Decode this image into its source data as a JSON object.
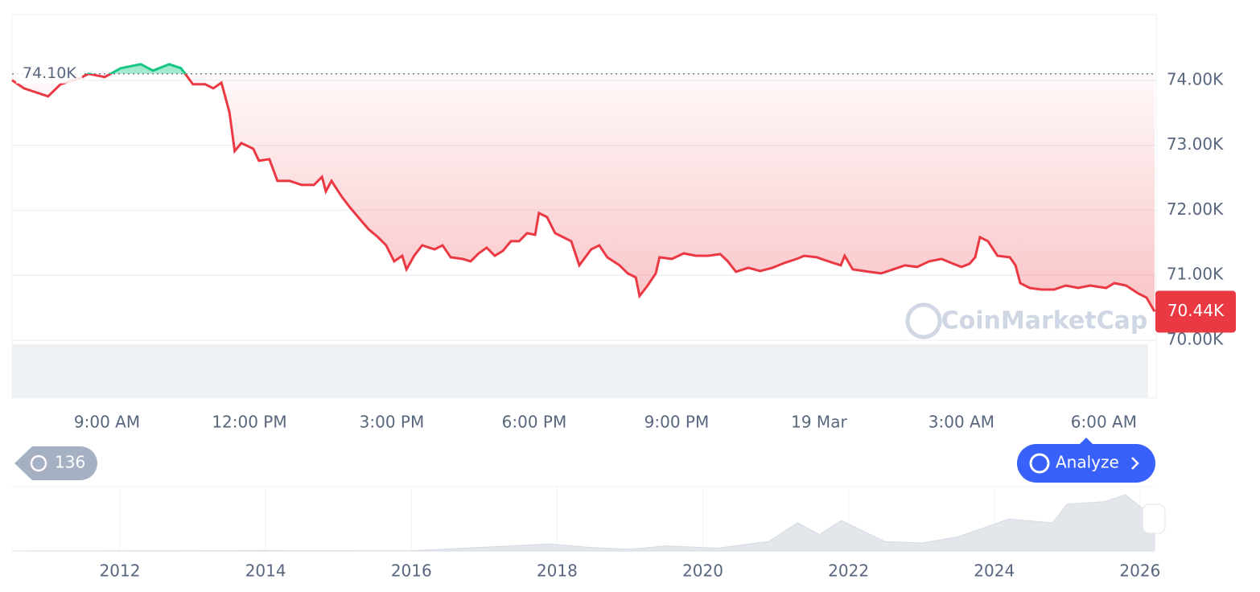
{
  "chart_data": {
    "type": "line",
    "color": "#ea3943",
    "up_color": "#16c784",
    "x": [
      7.0,
      7.25,
      7.76,
      8.02,
      8.44,
      8.61,
      8.95,
      9.29,
      9.71,
      9.97,
      10.31,
      10.56,
      10.81,
      11.07,
      11.24,
      11.41,
      11.58,
      11.69,
      11.83,
      12.08,
      12.2,
      12.42,
      12.59,
      12.85,
      13.1,
      13.36,
      13.53,
      13.61,
      13.73,
      13.95,
      14.12,
      14.29,
      14.51,
      14.71,
      14.88,
      15.05,
      15.22,
      15.31,
      15.47,
      15.64,
      15.9,
      16.07,
      16.24,
      16.49,
      16.66,
      16.83,
      17.0,
      17.17,
      17.34,
      17.51,
      17.68,
      17.85,
      18.02,
      18.1,
      18.27,
      18.44,
      18.61,
      18.78,
      18.95,
      19.2,
      19.37,
      19.54,
      19.8,
      19.97,
      20.14,
      20.22,
      20.39,
      20.56,
      20.64,
      20.9,
      21.15,
      21.41,
      21.66,
      21.92,
      22.08,
      22.25,
      22.51,
      22.76,
      23.02,
      23.27,
      23.53,
      23.69,
      23.95,
      24.2,
      24.46,
      24.54,
      24.71,
      25.05,
      25.31,
      25.56,
      25.81,
      26.07,
      26.32,
      26.58,
      26.83,
      27.0,
      27.17,
      27.29,
      27.39,
      27.56,
      27.76,
      28.02,
      28.14,
      28.24,
      28.44,
      28.69,
      28.95,
      29.2,
      29.46,
      29.71,
      30.05,
      30.22,
      30.47,
      30.73,
      30.9,
      31.07
    ],
    "values": [
      74000,
      73876,
      73752,
      73938,
      74037,
      74099,
      74050,
      74186,
      74248,
      74149,
      74248,
      74186,
      73938,
      73938,
      73876,
      73963,
      73505,
      72910,
      73034,
      72947,
      72762,
      72786,
      72452,
      72452,
      72390,
      72390,
      72514,
      72291,
      72452,
      72204,
      72043,
      71895,
      71709,
      71585,
      71461,
      71214,
      71300,
      71090,
      71300,
      71461,
      71399,
      71461,
      71276,
      71251,
      71214,
      71337,
      71424,
      71300,
      71375,
      71523,
      71523,
      71647,
      71622,
      71957,
      71895,
      71647,
      71585,
      71523,
      71152,
      71399,
      71461,
      71276,
      71152,
      71028,
      70966,
      70681,
      70842,
      71028,
      71276,
      71251,
      71337,
      71300,
      71300,
      71325,
      71214,
      71053,
      71115,
      71065,
      71115,
      71189,
      71251,
      71300,
      71276,
      71214,
      71152,
      71300,
      71090,
      71053,
      71028,
      71090,
      71152,
      71127,
      71214,
      71251,
      71176,
      71127,
      71176,
      71276,
      71585,
      71523,
      71300,
      71276,
      71152,
      70879,
      70805,
      70780,
      70780,
      70842,
      70805,
      70842,
      70805,
      70879,
      70842,
      70718,
      70656,
      70440
    ],
    "xlim": [
      7,
      31.07
    ],
    "xticks": [
      {
        "value": 9,
        "label": "9:00 AM"
      },
      {
        "value": 12,
        "label": "12:00 PM"
      },
      {
        "value": 15,
        "label": "3:00 PM"
      },
      {
        "value": 18,
        "label": "6:00 PM"
      },
      {
        "value": 21,
        "label": "9:00 PM"
      },
      {
        "value": 24,
        "label": "19 Mar"
      },
      {
        "value": 27,
        "label": "3:00 AM"
      },
      {
        "value": 30,
        "label": "6:00 AM"
      }
    ],
    "ylim": [
      70000,
      75000
    ],
    "yticks": [
      {
        "value": 70000,
        "label": "70.00K"
      },
      {
        "value": 71000,
        "label": "71.00K"
      },
      {
        "value": 72000,
        "label": "72.00K"
      },
      {
        "value": 73000,
        "label": "73.00K"
      },
      {
        "value": 74000,
        "label": "74.00K"
      }
    ],
    "grid": true,
    "reference": {
      "value": 74100,
      "label": "74.10K"
    },
    "last": {
      "value": 70440,
      "label": "70.44K"
    },
    "watermark": "CoinMarketCap"
  },
  "controls": {
    "history": "136",
    "analyze": "Analyze"
  },
  "navigator": {
    "x": [
      2010.52,
      2013,
      2014,
      2016,
      2017.9,
      2018.5,
      2019,
      2019.5,
      2020.2,
      2020.9,
      2021.3,
      2021.6,
      2021.9,
      2022.5,
      2023,
      2023.5,
      2024.2,
      2024.8,
      2025,
      2025.5,
      2025.8,
      2026.2
    ],
    "values": [
      0,
      0.5,
      0.8,
      0.4,
      15,
      7,
      4,
      11,
      6,
      20,
      60,
      35,
      65,
      20,
      17,
      30,
      68,
      60,
      100,
      105,
      120,
      70
    ],
    "xlim": [
      2010.52,
      2026.2
    ],
    "xticks": [
      2012,
      2014,
      2016,
      2018,
      2020,
      2022,
      2024,
      2026
    ]
  }
}
